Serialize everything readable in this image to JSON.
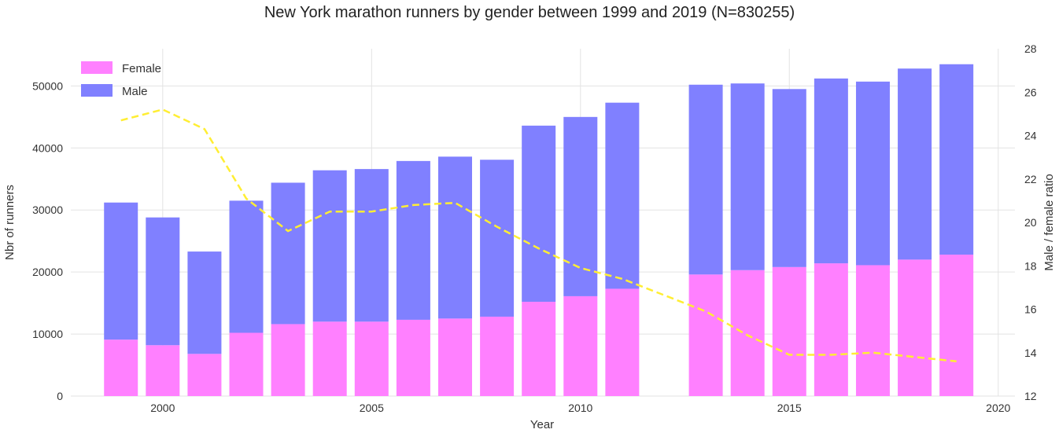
{
  "chart_data": {
    "type": "bar",
    "title": "New York marathon runners by gender between 1999 and 2019 (N=830255)",
    "xlabel": "Year",
    "ylabel": "Nbr of runners",
    "y2label": "Male / female ratio",
    "stacked": true,
    "x": [
      1999,
      2000,
      2001,
      2002,
      2003,
      2004,
      2005,
      2006,
      2007,
      2008,
      2009,
      2010,
      2011,
      2013,
      2014,
      2015,
      2016,
      2017,
      2018,
      2019
    ],
    "xlim": [
      1997.8,
      2020.4
    ],
    "ylim": [
      0,
      56000
    ],
    "y2lim": [
      12,
      28
    ],
    "x_ticks": [
      "2000",
      "2005",
      "2010",
      "2015",
      "2020"
    ],
    "y_ticks": [
      "0",
      "10000",
      "20000",
      "30000",
      "40000",
      "50000"
    ],
    "y2_ticks": [
      "12",
      "14",
      "16",
      "18",
      "20",
      "22",
      "24",
      "26",
      "28"
    ],
    "grid": true,
    "legend_position": "top-left",
    "series": [
      {
        "name": "Female",
        "color": "#ff80ff",
        "values": [
          9100,
          8200,
          6800,
          10200,
          11600,
          12000,
          12000,
          12300,
          12500,
          12800,
          15200,
          16100,
          17300,
          19600,
          20300,
          20800,
          21400,
          21100,
          22000,
          22800
        ]
      },
      {
        "name": "Male",
        "color": "#8080ff",
        "values": [
          22100,
          20600,
          16500,
          21300,
          22800,
          24400,
          24600,
          25600,
          26100,
          25300,
          28400,
          28900,
          30000,
          30600,
          30100,
          28700,
          29800,
          29600,
          30800,
          30700
        ]
      },
      {
        "name": "Male / female ratio",
        "type": "line",
        "axis": "right",
        "color": "#ffee33",
        "style": "dashed",
        "values": [
          24.7,
          25.2,
          24.3,
          21.1,
          19.6,
          20.5,
          20.5,
          20.8,
          20.9,
          19.8,
          18.8,
          17.9,
          17.4,
          15.9,
          14.8,
          13.9,
          13.9,
          14.0,
          13.8,
          13.6
        ]
      }
    ]
  }
}
